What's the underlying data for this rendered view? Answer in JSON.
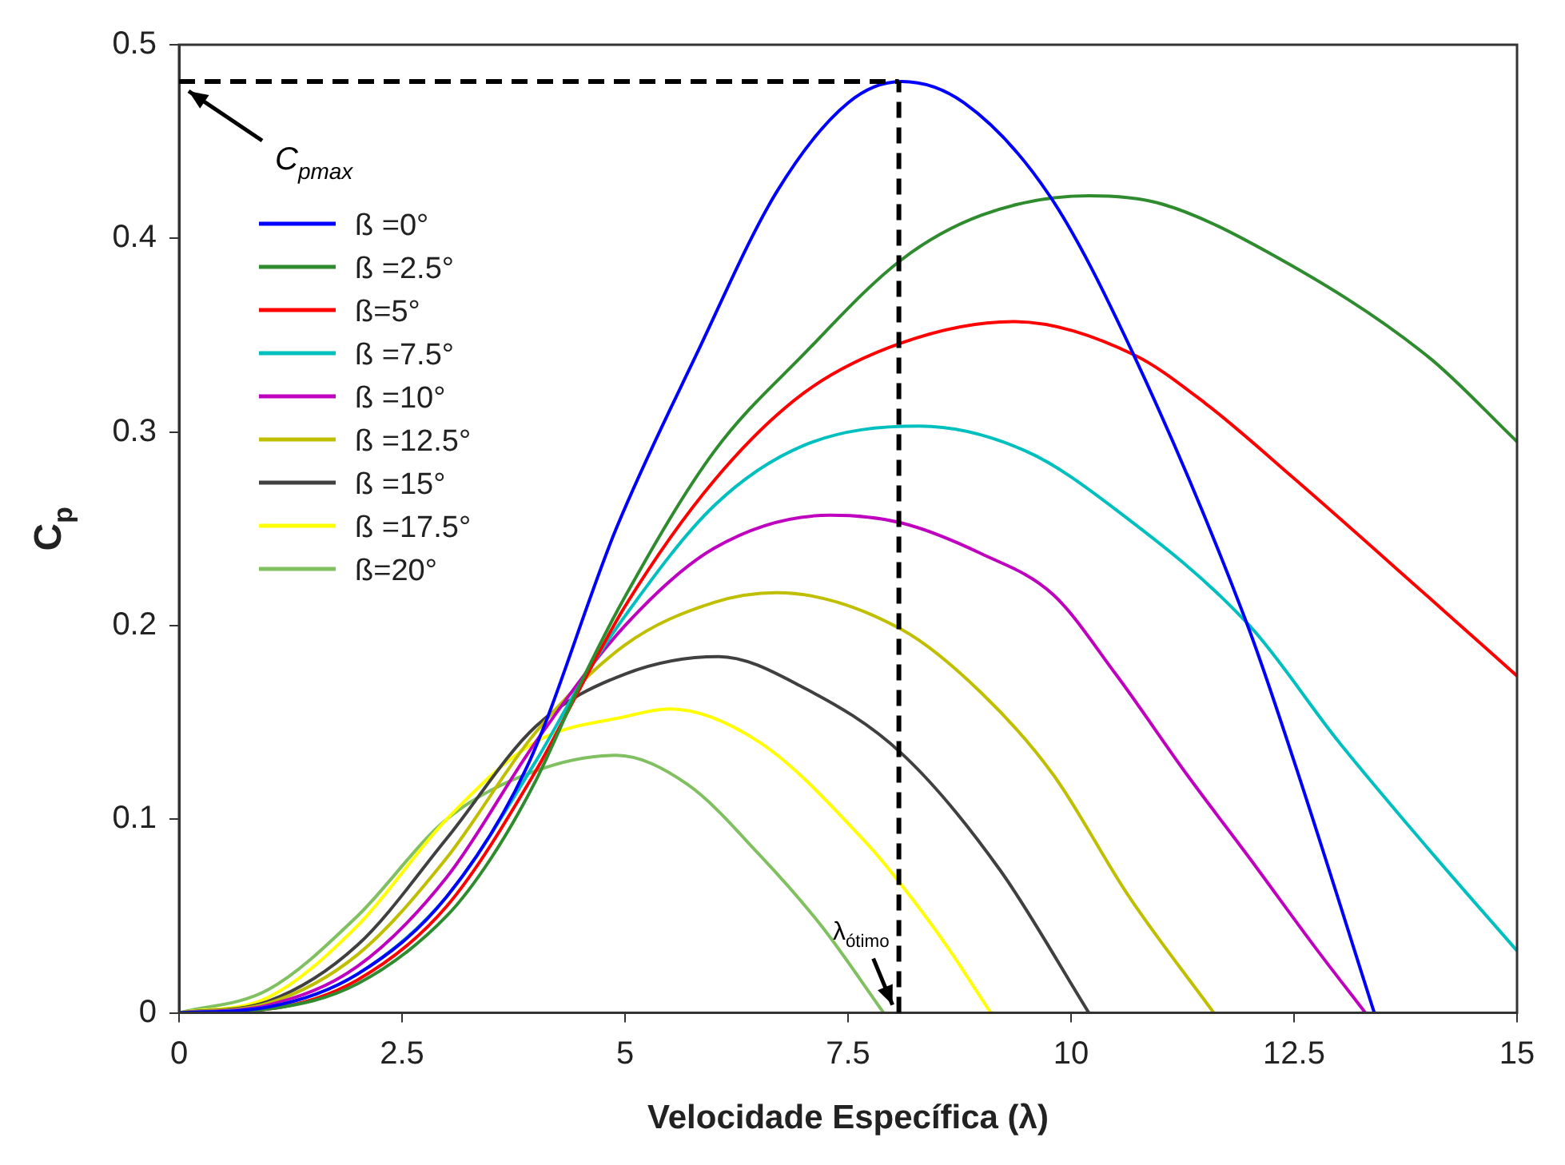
{
  "chart_data": {
    "type": "line",
    "xlabel": "Velocidade Específica (λ)",
    "ylabel": "C$_{p}$",
    "xlim": [
      0,
      15
    ],
    "xticks": [
      0,
      2.5,
      5,
      7.5,
      10,
      12.5,
      15
    ],
    "ylim": [
      0,
      0.5
    ],
    "yticks": [
      0,
      0.1,
      0.2,
      0.3,
      0.4,
      0.5
    ],
    "grid": false,
    "legend": "top left",
    "marker": "none",
    "line_style": "solid",
    "series": [
      {
        "name": "ß =0°",
        "color": "#0000ff",
        "x": [
          0,
          1,
          2,
          3,
          3.9,
          4.9,
          5.8,
          6.7,
          7.5,
          8.1,
          8.8,
          9.76,
          10.7,
          11.98,
          12.5,
          13.4
        ],
        "values": [
          0,
          0.003,
          0.02,
          0.06,
          0.127,
          0.25,
          0.34,
          0.424,
          0.47,
          0.481,
          0.47,
          0.422,
          0.34,
          0.2,
          0.13,
          0
        ]
      },
      {
        "name": "ß =2.5°",
        "color": "#2e8b2e",
        "x": [
          0,
          1,
          2,
          3,
          3.5,
          4,
          4.5,
          5,
          6,
          7,
          8.1,
          9,
          10.2,
          11,
          12.2,
          14,
          15
        ],
        "values": [
          0,
          0.002,
          0.015,
          0.05,
          0.08,
          0.12,
          0.17,
          0.215,
          0.29,
          0.34,
          0.389,
          0.412,
          0.422,
          0.418,
          0.393,
          0.339,
          0.295
        ]
      },
      {
        "name": "ß=5°",
        "color": "#ff0000",
        "x": [
          0,
          1,
          2,
          3,
          4,
          4.5,
          5,
          6,
          7,
          8.1,
          9.35,
          10.7,
          11.5,
          12.5,
          14,
          15
        ],
        "values": [
          0,
          0.002,
          0.017,
          0.055,
          0.125,
          0.168,
          0.21,
          0.275,
          0.32,
          0.346,
          0.357,
          0.34,
          0.315,
          0.276,
          0.215,
          0.174
        ]
      },
      {
        "name": "ß =7.5°",
        "color": "#00bfbf",
        "x": [
          0,
          1,
          2,
          3,
          4,
          4.5,
          5,
          6,
          7,
          8.3,
          9.5,
          10.5,
          12,
          13,
          14,
          15
        ],
        "values": [
          0,
          0.003,
          0.02,
          0.06,
          0.13,
          0.17,
          0.205,
          0.262,
          0.293,
          0.303,
          0.29,
          0.26,
          0.2,
          0.14,
          0.085,
          0.032
        ]
      },
      {
        "name": "ß =10°",
        "color": "#bf00bf",
        "x": [
          0,
          1,
          2,
          3,
          4,
          5,
          6,
          7.3,
          8.1,
          9,
          9.8,
          10.5,
          11.3,
          12,
          12.75,
          13.3
        ],
        "values": [
          0,
          0.004,
          0.024,
          0.07,
          0.14,
          0.2,
          0.24,
          0.257,
          0.253,
          0.237,
          0.216,
          0.175,
          0.123,
          0.08,
          0.033,
          0
        ]
      },
      {
        "name": "ß =12.5°",
        "color": "#bfbf00",
        "x": [
          0,
          1,
          2,
          3,
          4,
          5,
          6,
          6.7,
          8.1,
          9,
          9.8,
          10.65,
          11.6
        ],
        "values": [
          0,
          0.005,
          0.03,
          0.08,
          0.145,
          0.19,
          0.212,
          0.217,
          0.198,
          0.165,
          0.123,
          0.06,
          0
        ]
      },
      {
        "name": "ß =15°",
        "color": "#404040",
        "x": [
          0,
          1,
          2,
          3,
          4,
          5,
          6.05,
          7,
          8.1,
          9.2,
          10.2
        ],
        "values": [
          0,
          0.006,
          0.035,
          0.09,
          0.148,
          0.175,
          0.184,
          0.168,
          0.134,
          0.074,
          0
        ]
      },
      {
        "name": "ß =17.5°",
        "color": "#ffff00",
        "x": [
          0,
          1,
          2,
          3,
          4,
          5,
          5.5,
          6.5,
          7.7,
          8.1,
          8.6,
          9.1
        ],
        "values": [
          0,
          0.008,
          0.045,
          0.1,
          0.14,
          0.153,
          0.157,
          0.14,
          0.088,
          0.066,
          0.035,
          0
        ]
      },
      {
        "name": "ß=20°",
        "color": "#80c060",
        "x": [
          0,
          1,
          2,
          3,
          4,
          4.9,
          5.7,
          6.5,
          7.2,
          7.9
        ],
        "values": [
          0,
          0.012,
          0.05,
          0.1,
          0.125,
          0.133,
          0.118,
          0.082,
          0.045,
          0
        ]
      }
    ],
    "ref_lines": [
      {
        "axis": "y",
        "value": 0.481,
        "label": "C$_{pmax}$",
        "color": "#000000",
        "line_style": "dashed"
      },
      {
        "axis": "x",
        "value": 8.07,
        "label": "λ$_{ótimo}$",
        "color": "#000000",
        "line_style": "dashed"
      }
    ]
  }
}
